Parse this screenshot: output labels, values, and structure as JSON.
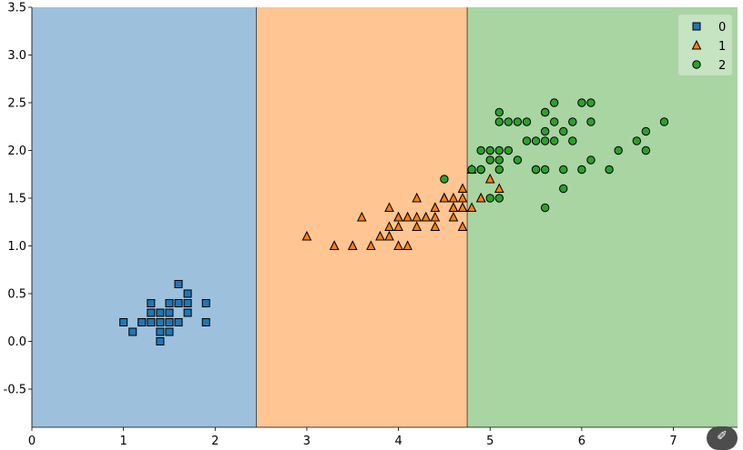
{
  "chart_data": {
    "type": "scatter",
    "title": "",
    "xlabel": "",
    "ylabel": "",
    "xlim": [
      0.0,
      7.7
    ],
    "ylim": [
      -0.9,
      3.5
    ],
    "x_ticks": [
      "0",
      "1",
      "2",
      "3",
      "4",
      "5",
      "6",
      "7"
    ],
    "y_ticks": [
      "-0.5",
      "0.0",
      "0.5",
      "1.0",
      "1.5",
      "2.0",
      "2.5",
      "3.0",
      "3.5"
    ],
    "grid": false,
    "legend_position": "top-right",
    "decision_regions": [
      {
        "class": "0",
        "x_from": 0.0,
        "x_to": 2.45,
        "color": "#9dc0dd"
      },
      {
        "class": "1",
        "x_from": 2.45,
        "x_to": 4.75,
        "color": "#ffc593"
      },
      {
        "class": "2",
        "x_from": 4.75,
        "x_to": 7.7,
        "color": "#a8d5a2"
      }
    ],
    "series": [
      {
        "name": "0",
        "marker": "square",
        "color": "#1f77b4",
        "points": [
          [
            1.4,
            0.2
          ],
          [
            1.3,
            0.2
          ],
          [
            1.5,
            0.2
          ],
          [
            1.7,
            0.4
          ],
          [
            1.4,
            0.3
          ],
          [
            1.5,
            0.1
          ],
          [
            1.6,
            0.2
          ],
          [
            1.1,
            0.1
          ],
          [
            1.2,
            0.2
          ],
          [
            1.5,
            0.4
          ],
          [
            1.3,
            0.4
          ],
          [
            1.7,
            0.3
          ],
          [
            1.5,
            0.3
          ],
          [
            1.0,
            0.2
          ],
          [
            1.9,
            0.2
          ],
          [
            1.6,
            0.4
          ],
          [
            1.4,
            0.1
          ],
          [
            1.6,
            0.6
          ],
          [
            1.9,
            0.4
          ],
          [
            1.4,
            0.0
          ],
          [
            1.7,
            0.5
          ],
          [
            1.2,
            0.2
          ],
          [
            1.3,
            0.3
          ],
          [
            1.5,
            0.2
          ]
        ]
      },
      {
        "name": "1",
        "marker": "triangle",
        "color": "#ff7f0e",
        "points": [
          [
            4.7,
            1.4
          ],
          [
            4.5,
            1.5
          ],
          [
            4.9,
            1.5
          ],
          [
            4.0,
            1.3
          ],
          [
            4.6,
            1.5
          ],
          [
            3.3,
            1.0
          ],
          [
            4.6,
            1.3
          ],
          [
            3.9,
            1.4
          ],
          [
            3.5,
            1.0
          ],
          [
            4.2,
            1.5
          ],
          [
            4.0,
            1.0
          ],
          [
            4.7,
            1.4
          ],
          [
            3.6,
            1.3
          ],
          [
            4.4,
            1.4
          ],
          [
            4.5,
            1.5
          ],
          [
            4.1,
            1.0
          ],
          [
            4.5,
            1.5
          ],
          [
            3.9,
            1.1
          ],
          [
            4.8,
            1.8
          ],
          [
            4.0,
            1.3
          ],
          [
            4.9,
            1.5
          ],
          [
            4.7,
            1.2
          ],
          [
            4.3,
            1.3
          ],
          [
            4.4,
            1.4
          ],
          [
            4.8,
            1.4
          ],
          [
            5.0,
            1.7
          ],
          [
            4.5,
            1.5
          ],
          [
            3.5,
            1.0
          ],
          [
            3.8,
            1.1
          ],
          [
            3.7,
            1.0
          ],
          [
            3.9,
            1.2
          ],
          [
            5.1,
            1.6
          ],
          [
            4.5,
            1.5
          ],
          [
            4.7,
            1.5
          ],
          [
            4.4,
            1.3
          ],
          [
            4.1,
            1.3
          ],
          [
            4.0,
            1.3
          ],
          [
            4.4,
            1.2
          ],
          [
            4.6,
            1.4
          ],
          [
            4.0,
            1.2
          ],
          [
            3.3,
            1.0
          ],
          [
            4.2,
            1.3
          ],
          [
            4.2,
            1.2
          ],
          [
            4.3,
            1.3
          ],
          [
            3.0,
            1.1
          ],
          [
            4.1,
            1.3
          ],
          [
            4.7,
            1.6
          ],
          [
            4.6,
            1.4
          ]
        ]
      },
      {
        "name": "2",
        "marker": "circle",
        "color": "#2ca02c",
        "points": [
          [
            6.0,
            2.5
          ],
          [
            5.1,
            1.9
          ],
          [
            5.9,
            2.1
          ],
          [
            5.6,
            1.8
          ],
          [
            5.8,
            2.2
          ],
          [
            6.6,
            2.1
          ],
          [
            4.5,
            1.7
          ],
          [
            6.3,
            1.8
          ],
          [
            5.8,
            1.8
          ],
          [
            6.1,
            2.5
          ],
          [
            5.1,
            2.0
          ],
          [
            5.3,
            1.9
          ],
          [
            5.5,
            2.1
          ],
          [
            5.0,
            2.0
          ],
          [
            5.1,
            2.4
          ],
          [
            5.3,
            2.3
          ],
          [
            5.5,
            1.8
          ],
          [
            6.7,
            2.2
          ],
          [
            6.9,
            2.3
          ],
          [
            5.0,
            1.5
          ],
          [
            5.7,
            2.3
          ],
          [
            4.9,
            2.0
          ],
          [
            6.7,
            2.0
          ],
          [
            4.9,
            1.8
          ],
          [
            5.7,
            2.1
          ],
          [
            6.0,
            1.8
          ],
          [
            4.8,
            1.8
          ],
          [
            4.9,
            1.8
          ],
          [
            5.6,
            2.1
          ],
          [
            5.8,
            1.6
          ],
          [
            6.1,
            1.9
          ],
          [
            6.4,
            2.0
          ],
          [
            5.6,
            2.2
          ],
          [
            5.1,
            1.5
          ],
          [
            5.6,
            1.4
          ],
          [
            6.1,
            2.3
          ],
          [
            5.6,
            2.4
          ],
          [
            5.5,
            1.8
          ],
          [
            5.4,
            2.1
          ],
          [
            5.6,
            2.4
          ],
          [
            5.1,
            2.3
          ],
          [
            5.9,
            2.3
          ],
          [
            5.7,
            2.5
          ],
          [
            5.2,
            2.3
          ],
          [
            5.0,
            1.9
          ],
          [
            5.2,
            2.0
          ],
          [
            5.4,
            2.3
          ],
          [
            5.1,
            1.8
          ]
        ]
      }
    ],
    "legend": [
      {
        "label": "0",
        "marker": "square",
        "color": "#1f77b4"
      },
      {
        "label": "1",
        "marker": "triangle",
        "color": "#ff7f0e"
      },
      {
        "label": "2",
        "marker": "circle",
        "color": "#2ca02c"
      }
    ]
  },
  "toolbar": {
    "tool_icon": "magic-wand-icon",
    "tool_glyph": "✐"
  }
}
